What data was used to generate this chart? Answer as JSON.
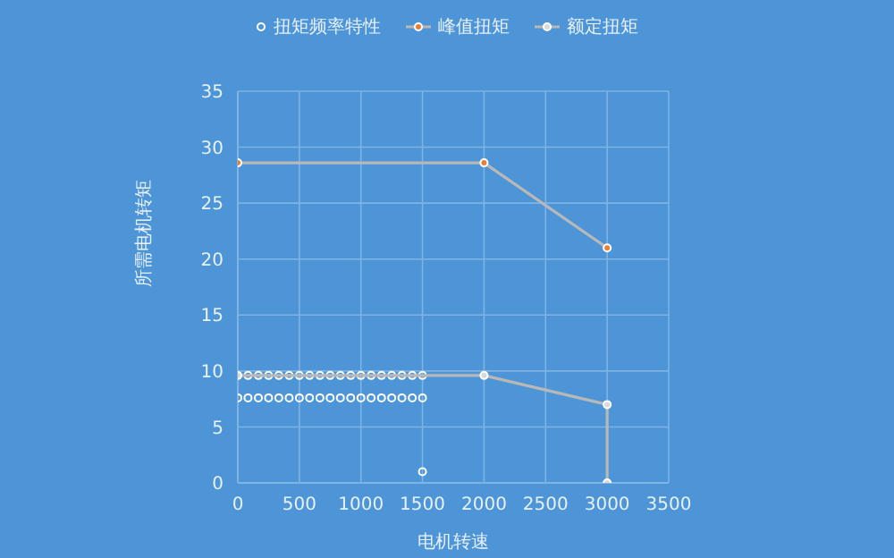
{
  "chart_data": {
    "type": "scatter",
    "xlabel": "电机转速",
    "ylabel": "所需电机转矩",
    "xlim": [
      0,
      3500
    ],
    "xticks": [
      0,
      500,
      1000,
      1500,
      2000,
      2500,
      3000,
      3500
    ],
    "ylim": [
      0,
      35
    ],
    "yticks": [
      0,
      5,
      10,
      15,
      20,
      25,
      30,
      35
    ],
    "grid": true,
    "legend": "top",
    "marker": "circle",
    "series": [
      {
        "name": "扭矩频率特性",
        "color": "#ffffff",
        "x": [
          83,
          167,
          250,
          333,
          417,
          500,
          583,
          667,
          750,
          833,
          917,
          1000,
          1083,
          1167,
          1250,
          1333,
          1417,
          1500,
          0,
          83,
          167,
          250,
          333,
          417,
          500,
          583,
          667,
          750,
          833,
          917,
          1000,
          1083,
          1167,
          1250,
          1333,
          1417,
          1500,
          1500
        ],
        "values": [
          9.6,
          9.6,
          9.6,
          9.6,
          9.6,
          9.6,
          9.6,
          9.6,
          9.6,
          9.6,
          9.6,
          9.6,
          9.6,
          9.6,
          9.6,
          9.6,
          9.6,
          9.6,
          7.6,
          7.6,
          7.6,
          7.6,
          7.6,
          7.6,
          7.6,
          7.6,
          7.6,
          7.6,
          7.6,
          7.6,
          7.6,
          7.6,
          7.6,
          7.6,
          7.6,
          7.6,
          7.6,
          1
        ]
      },
      {
        "name": "峰值扭矩",
        "type": "line",
        "color": "#ed7d31",
        "x": [
          0,
          2000,
          3000
        ],
        "values": [
          28.6,
          28.6,
          21
        ]
      },
      {
        "name": "额定扭矩",
        "type": "line",
        "color": "#d9d9d9",
        "x": [
          0,
          2000,
          3000,
          3000
        ],
        "values": [
          9.6,
          9.6,
          7,
          0
        ]
      }
    ]
  }
}
